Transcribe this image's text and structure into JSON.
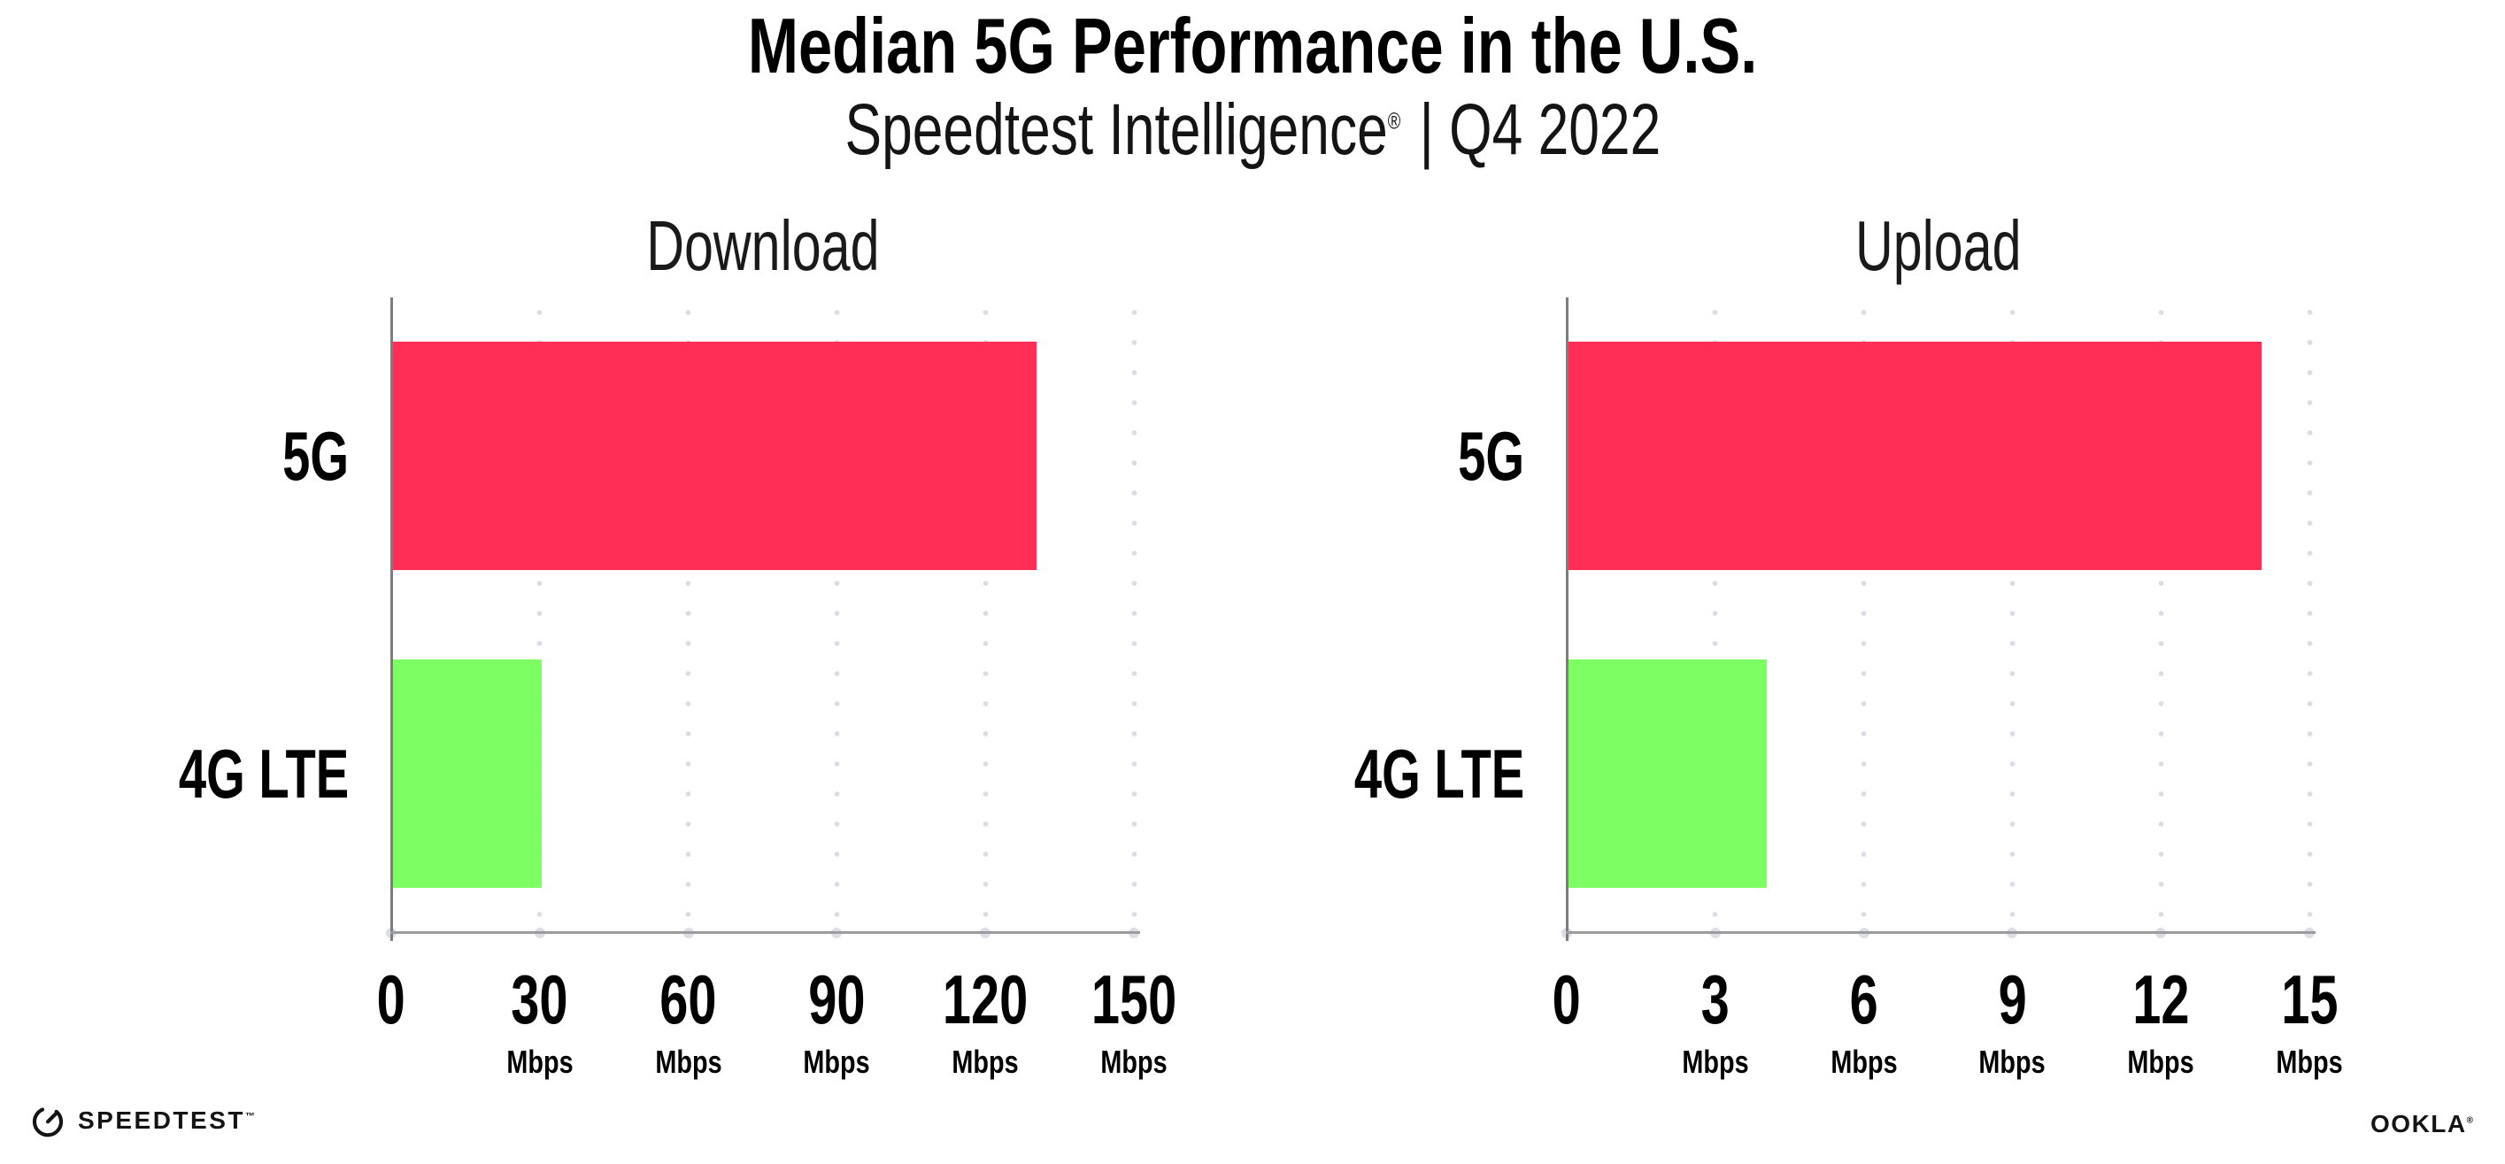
{
  "header": {
    "title": "Median 5G Performance in the U.S.",
    "subtitle_brand": "Speedtest Intelligence",
    "subtitle_mark": "®",
    "subtitle_rest": "| Q4 2022"
  },
  "chart_data": [
    {
      "type": "bar",
      "orientation": "horizontal",
      "title": "Download",
      "categories": [
        "5G",
        "4G LTE"
      ],
      "values": [
        130,
        30
      ],
      "unit": "Mbps",
      "xlim": [
        0,
        150
      ],
      "ticks": [
        0,
        30,
        60,
        90,
        120,
        150
      ],
      "bar_colors": [
        "#ff2e56",
        "#7dff64"
      ],
      "grid": "vertical-dotted",
      "legend": "none"
    },
    {
      "type": "bar",
      "orientation": "horizontal",
      "title": "Upload",
      "categories": [
        "5G",
        "4G LTE"
      ],
      "values": [
        14,
        4
      ],
      "unit": "Mbps",
      "xlim": [
        0,
        15
      ],
      "ticks": [
        0,
        3,
        6,
        9,
        12,
        15
      ],
      "bar_colors": [
        "#ff2e56",
        "#7dff64"
      ],
      "grid": "vertical-dotted",
      "legend": "none"
    }
  ],
  "colors": {
    "bar_5g": "#ff2e56",
    "bar_4g_lte": "#7dff64",
    "axis": "#9c9c9c",
    "gridline_dot": "#dcdce6",
    "text": "#000000"
  },
  "footer": {
    "speedtest": "SPEEDTEST",
    "speedtest_mark": "™",
    "ookla": "OOKLA",
    "ookla_mark": "®"
  }
}
